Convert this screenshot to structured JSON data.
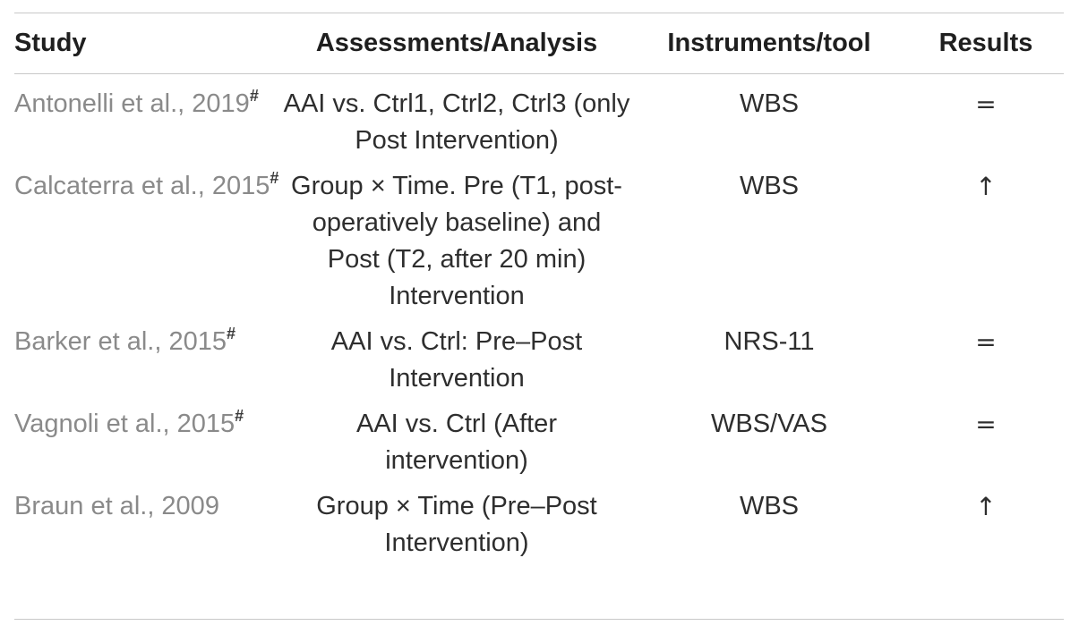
{
  "table": {
    "headers": {
      "study": "Study",
      "assessments": "Assessments/Analysis",
      "instruments": "Instruments/tool",
      "results": "Results"
    },
    "rows": [
      {
        "study": "Antonelli et al., 2019",
        "study_mark": "#",
        "assessment": "AAI vs. Ctrl1, Ctrl2, Ctrl3 (only Post Intervention)",
        "instrument": "WBS",
        "result": "="
      },
      {
        "study": "Calcaterra et al., 2015",
        "study_mark": "#",
        "assessment": "Group × Time. Pre (T1, post-operatively baseline) and Post (T2, after 20 min) Intervention",
        "instrument": "WBS",
        "result": "↑"
      },
      {
        "study": "Barker et al., 2015",
        "study_mark": "#",
        "assessment": "AAI vs. Ctrl: Pre–Post Intervention",
        "instrument": "NRS-11",
        "result": "="
      },
      {
        "study": "Vagnoli et al., 2015",
        "study_mark": "#",
        "assessment": "AAI vs. Ctrl (After intervention)",
        "instrument": "WBS/VAS",
        "result": "="
      },
      {
        "study": "Braun et al., 2009",
        "study_mark": "",
        "assessment": "Group × Time (Pre–Post Intervention)",
        "instrument": "WBS",
        "result": "↑"
      }
    ]
  }
}
